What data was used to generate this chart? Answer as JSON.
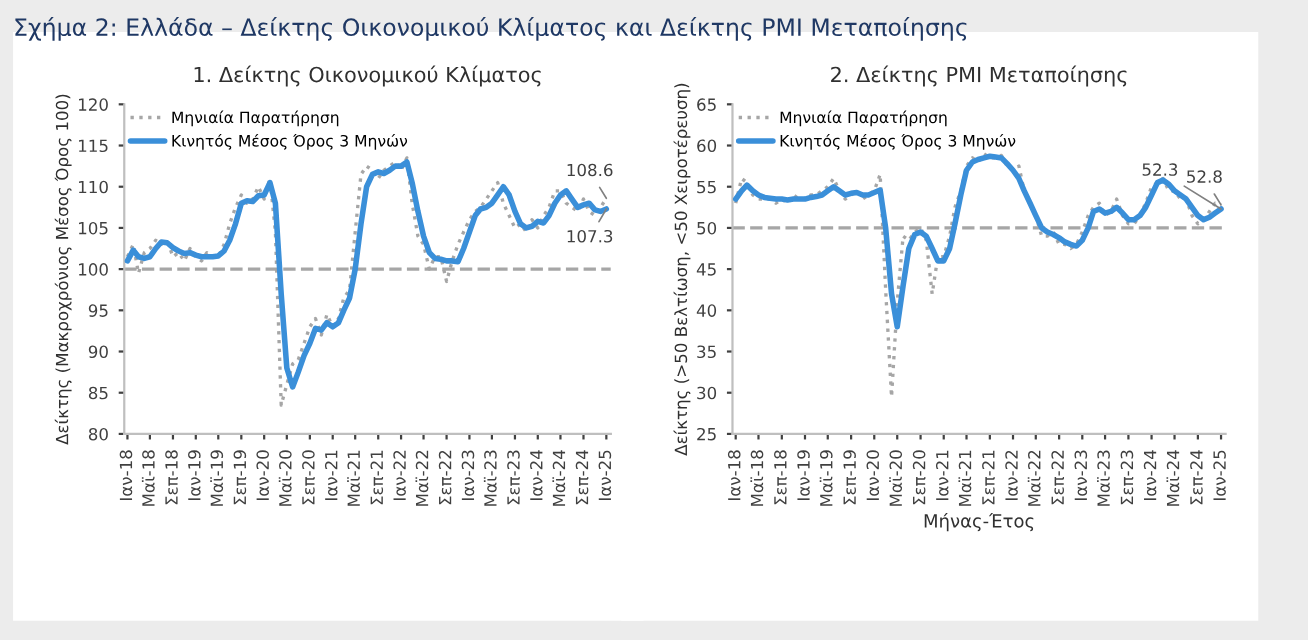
{
  "chart_data": [
    {
      "type": "line",
      "title": "1. Δείκτης Οικονομικού Κλίματος",
      "ylabel": "Δείκτης (Μακροχρόνιος Μέσος Όρος 100)",
      "annotations": [
        "Σχήμα 2: Ελλάδα – Δείκτης Οικονομικού Κλίματος και Δείκτης PMI Μεταποίησης",
        {
          "text": "108.6",
          "x": "2025-01",
          "y": 108.6
        },
        {
          "text": "107.3",
          "x": "2025-01",
          "y": 107.3
        }
      ],
      "x": [
        "2018-01",
        "2018-02",
        "2018-03",
        "2018-04",
        "2018-05",
        "2018-06",
        "2018-07",
        "2018-08",
        "2018-09",
        "2018-10",
        "2018-11",
        "2018-12",
        "2019-01",
        "2019-02",
        "2019-03",
        "2019-04",
        "2019-05",
        "2019-06",
        "2019-07",
        "2019-08",
        "2019-09",
        "2019-10",
        "2019-11",
        "2019-12",
        "2020-01",
        "2020-02",
        "2020-03",
        "2020-04",
        "2020-05",
        "2020-06",
        "2020-07",
        "2020-08",
        "2020-09",
        "2020-10",
        "2020-11",
        "2020-12",
        "2021-01",
        "2021-02",
        "2021-03",
        "2021-04",
        "2021-05",
        "2021-06",
        "2021-07",
        "2021-08",
        "2021-09",
        "2021-10",
        "2021-11",
        "2021-12",
        "2022-01",
        "2022-02",
        "2022-03",
        "2022-04",
        "2022-05",
        "2022-06",
        "2022-07",
        "2022-08",
        "2022-09",
        "2022-10",
        "2022-11",
        "2022-12",
        "2023-01",
        "2023-02",
        "2023-03",
        "2023-04",
        "2023-05",
        "2023-06",
        "2023-07",
        "2023-08",
        "2023-09",
        "2023-10",
        "2023-11",
        "2023-12",
        "2024-01",
        "2024-02",
        "2024-03",
        "2024-04",
        "2024-05",
        "2024-06",
        "2024-07",
        "2024-08",
        "2024-09",
        "2024-10",
        "2024-11",
        "2024-12",
        "2025-01"
      ],
      "series": [
        {
          "name": "Μηνιαία Παρατήρηση",
          "color": "#a6a6a6",
          "line_style": "dotted",
          "values": [
            101.5,
            103.0,
            99.5,
            102.0,
            102.5,
            103.5,
            103.0,
            103.5,
            101.5,
            102.0,
            101.0,
            102.5,
            101.5,
            101.0,
            102.0,
            101.5,
            101.5,
            103.0,
            105.5,
            107.5,
            109.0,
            108.0,
            108.5,
            110.0,
            108.5,
            111.0,
            104.5,
            83.5,
            86.0,
            88.5,
            89.0,
            91.0,
            93.0,
            94.0,
            92.0,
            94.5,
            93.0,
            94.0,
            96.5,
            97.5,
            104.5,
            111.5,
            112.5,
            112.0,
            111.0,
            112.0,
            112.5,
            113.0,
            112.0,
            113.5,
            108.0,
            104.0,
            103.0,
            100.0,
            101.5,
            101.5,
            98.5,
            101.0,
            103.0,
            104.5,
            106.0,
            107.0,
            107.5,
            108.5,
            109.5,
            110.5,
            108.0,
            106.5,
            105.0,
            105.5,
            104.5,
            106.0,
            105.0,
            106.5,
            107.5,
            109.5,
            109.5,
            108.0,
            107.5,
            107.0,
            108.5,
            107.0,
            106.5,
            107.5,
            108.6
          ]
        },
        {
          "name": "Κινητός Μέσος Όρος 3 Μηνών",
          "color": "#3a8fd9",
          "line_style": "solid",
          "values": [
            101.0,
            102.3,
            101.5,
            101.3,
            101.5,
            102.5,
            103.3,
            103.2,
            102.6,
            102.2,
            101.9,
            102.0,
            101.7,
            101.5,
            101.5,
            101.5,
            101.6,
            102.2,
            103.5,
            105.5,
            108.0,
            108.3,
            108.2,
            108.9,
            109.0,
            110.5,
            108.0,
            97.0,
            88.0,
            85.7,
            87.5,
            89.5,
            91.0,
            92.8,
            92.6,
            93.5,
            93.0,
            93.5,
            95.0,
            96.5,
            100.0,
            105.5,
            110.0,
            111.5,
            111.8,
            111.6,
            112.0,
            112.5,
            112.5,
            113.0,
            110.5,
            107.0,
            104.0,
            102.0,
            101.3,
            101.2,
            101.0,
            101.0,
            100.9,
            102.5,
            104.5,
            106.5,
            107.3,
            107.5,
            108.0,
            109.0,
            110.0,
            109.0,
            107.0,
            105.5,
            105.0,
            105.2,
            105.8,
            105.6,
            106.5,
            108.0,
            109.0,
            109.5,
            108.5,
            107.5,
            107.8,
            108.0,
            107.2,
            107.0,
            107.3
          ]
        }
      ],
      "ylim": [
        80,
        120
      ],
      "yticks": [
        80,
        85,
        90,
        95,
        100,
        105,
        110,
        115,
        120
      ],
      "xlim": [
        "2017-12-15",
        "2025-01-25"
      ],
      "xticks": [
        {
          "value": "2018-01",
          "label": "Ιαν-18"
        },
        {
          "value": "2018-05",
          "label": "Μαϊ-18"
        },
        {
          "value": "2018-09",
          "label": "Σεπ-18"
        },
        {
          "value": "2019-01",
          "label": "Ιαν-19"
        },
        {
          "value": "2019-05",
          "label": "Μαϊ-19"
        },
        {
          "value": "2019-09",
          "label": "Σεπ-19"
        },
        {
          "value": "2020-01",
          "label": "Ιαν-20"
        },
        {
          "value": "2020-05",
          "label": "Μαϊ-20"
        },
        {
          "value": "2020-09",
          "label": "Σεπ-20"
        },
        {
          "value": "2021-01",
          "label": "Ιαν-21"
        },
        {
          "value": "2021-05",
          "label": "Μαϊ-21"
        },
        {
          "value": "2021-09",
          "label": "Σεπ-21"
        },
        {
          "value": "2022-01",
          "label": "Ιαν-22"
        },
        {
          "value": "2022-05",
          "label": "Μαϊ-22"
        },
        {
          "value": "2022-09",
          "label": "Σεπ-22"
        },
        {
          "value": "2023-01",
          "label": "Ιαν-23"
        },
        {
          "value": "2023-05",
          "label": "Μαϊ-23"
        },
        {
          "value": "2023-09",
          "label": "Σεπ-23"
        },
        {
          "value": "2024-01",
          "label": "Ιαν-24"
        },
        {
          "value": "2024-05",
          "label": "Μαϊ-24"
        },
        {
          "value": "2024-09",
          "label": "Σεπ-24"
        },
        {
          "value": "2025-01",
          "label": "Ιαν-25"
        }
      ],
      "ref_lines": [
        {
          "axis": "y",
          "value": 100,
          "color": "#a6a6a6",
          "line_style": "dashed"
        }
      ],
      "legend": "top left",
      "grid": false
    },
    {
      "type": "line",
      "title": "2. Δείκτης PMI Μεταποίησης",
      "ylabel": "Δείκτης (>50 Βελτίωση, <50 Χειροτέρευση)",
      "xlabel": "Μήνας-Έτος",
      "annotations": [
        {
          "text": "52.8",
          "x": "2025-01",
          "y": 52.8
        },
        {
          "text": "52.3",
          "x": "2025-01",
          "y": 52.3
        }
      ],
      "x": [
        "2018-01",
        "2018-02",
        "2018-03",
        "2018-04",
        "2018-05",
        "2018-06",
        "2018-07",
        "2018-08",
        "2018-09",
        "2018-10",
        "2018-11",
        "2018-12",
        "2019-01",
        "2019-02",
        "2019-03",
        "2019-04",
        "2019-05",
        "2019-06",
        "2019-07",
        "2019-08",
        "2019-09",
        "2019-10",
        "2019-11",
        "2019-12",
        "2020-01",
        "2020-02",
        "2020-03",
        "2020-04",
        "2020-05",
        "2020-06",
        "2020-07",
        "2020-08",
        "2020-09",
        "2020-10",
        "2020-11",
        "2020-12",
        "2021-01",
        "2021-02",
        "2021-03",
        "2021-04",
        "2021-05",
        "2021-06",
        "2021-07",
        "2021-08",
        "2021-09",
        "2021-10",
        "2021-11",
        "2021-12",
        "2022-01",
        "2022-02",
        "2022-03",
        "2022-04",
        "2022-05",
        "2022-06",
        "2022-07",
        "2022-08",
        "2022-09",
        "2022-10",
        "2022-11",
        "2022-12",
        "2023-01",
        "2023-02",
        "2023-03",
        "2023-04",
        "2023-05",
        "2023-06",
        "2023-07",
        "2023-08",
        "2023-09",
        "2023-10",
        "2023-11",
        "2023-12",
        "2024-01",
        "2024-02",
        "2024-03",
        "2024-04",
        "2024-05",
        "2024-06",
        "2024-07",
        "2024-08",
        "2024-09",
        "2024-10",
        "2024-11",
        "2024-12",
        "2025-01"
      ],
      "series": [
        {
          "name": "Μηνιαία Παρατήρηση",
          "color": "#a6a6a6",
          "line_style": "dotted",
          "values": [
            53.0,
            56.0,
            55.5,
            54.0,
            53.5,
            53.5,
            53.5,
            53.0,
            53.5,
            53.0,
            54.0,
            53.5,
            53.5,
            54.0,
            54.0,
            54.5,
            55.0,
            56.0,
            54.5,
            53.5,
            54.0,
            54.5,
            53.5,
            54.0,
            54.5,
            56.5,
            42.5,
            29.5,
            41.0,
            49.0,
            48.5,
            49.5,
            50.0,
            48.5,
            42.0,
            46.5,
            46.5,
            49.0,
            52.5,
            54.5,
            57.5,
            58.5,
            58.0,
            59.0,
            58.5,
            58.5,
            58.8,
            57.5,
            57.0,
            57.5,
            54.5,
            53.0,
            51.5,
            49.0,
            49.0,
            49.5,
            48.0,
            48.0,
            47.5,
            48.0,
            49.5,
            51.5,
            52.5,
            53.0,
            51.5,
            52.0,
            53.5,
            51.5,
            50.5,
            50.5,
            51.5,
            53.0,
            55.0,
            55.5,
            56.0,
            54.5,
            54.5,
            53.5,
            53.5,
            51.5,
            50.5,
            51.0,
            52.0,
            53.0,
            52.8
          ]
        },
        {
          "name": "Κινητός Μέσος Όρος 3 Μηνών",
          "color": "#3a8fd9",
          "line_style": "solid",
          "values": [
            53.5,
            54.5,
            55.2,
            54.5,
            54.0,
            53.7,
            53.6,
            53.5,
            53.5,
            53.4,
            53.5,
            53.5,
            53.5,
            53.7,
            53.8,
            54.0,
            54.5,
            55.0,
            54.5,
            54.0,
            54.2,
            54.3,
            54.0,
            54.0,
            54.3,
            54.6,
            50.0,
            42.0,
            38.0,
            43.0,
            47.5,
            49.2,
            49.5,
            49.0,
            47.5,
            46.0,
            46.0,
            47.5,
            50.5,
            54.0,
            57.0,
            58.0,
            58.3,
            58.5,
            58.7,
            58.6,
            58.5,
            57.8,
            57.0,
            56.0,
            54.5,
            53.0,
            51.5,
            50.0,
            49.5,
            49.2,
            48.8,
            48.3,
            48.0,
            47.8,
            48.5,
            50.0,
            52.0,
            52.3,
            51.8,
            52.0,
            52.5,
            51.8,
            51.0,
            51.0,
            51.5,
            52.5,
            54.0,
            55.5,
            55.8,
            55.3,
            54.5,
            54.0,
            53.5,
            52.5,
            51.5,
            51.0,
            51.3,
            51.8,
            52.3
          ]
        }
      ],
      "ylim": [
        25,
        65
      ],
      "yticks": [
        25,
        30,
        35,
        40,
        45,
        50,
        55,
        60,
        65
      ],
      "xlim": [
        "2017-12-15",
        "2025-01-25"
      ],
      "xticks": [
        {
          "value": "2018-01",
          "label": "Ιαν-18"
        },
        {
          "value": "2018-05",
          "label": "Μαϊ-18"
        },
        {
          "value": "2018-09",
          "label": "Σεπ-18"
        },
        {
          "value": "2019-01",
          "label": "Ιαν-19"
        },
        {
          "value": "2019-05",
          "label": "Μαϊ-19"
        },
        {
          "value": "2019-09",
          "label": "Σεπ-19"
        },
        {
          "value": "2020-01",
          "label": "Ιαν-20"
        },
        {
          "value": "2020-05",
          "label": "Μαϊ-20"
        },
        {
          "value": "2020-09",
          "label": "Σεπ-20"
        },
        {
          "value": "2021-01",
          "label": "Ιαν-21"
        },
        {
          "value": "2021-05",
          "label": "Μαϊ-21"
        },
        {
          "value": "2021-09",
          "label": "Σεπ-21"
        },
        {
          "value": "2022-01",
          "label": "Ιαν-22"
        },
        {
          "value": "2022-05",
          "label": "Μαϊ-22"
        },
        {
          "value": "2022-09",
          "label": "Σεπ-22"
        },
        {
          "value": "2023-01",
          "label": "Ιαν-23"
        },
        {
          "value": "2023-05",
          "label": "Μαϊ-23"
        },
        {
          "value": "2023-09",
          "label": "Σεπ-23"
        },
        {
          "value": "2024-01",
          "label": "Ιαν-24"
        },
        {
          "value": "2024-05",
          "label": "Μαϊ-24"
        },
        {
          "value": "2024-09",
          "label": "Σεπ-24"
        },
        {
          "value": "2025-01",
          "label": "Ιαν-25"
        }
      ],
      "ref_lines": [
        {
          "axis": "y",
          "value": 50,
          "color": "#a6a6a6",
          "line_style": "dashed"
        }
      ],
      "legend": "top left",
      "grid": false
    }
  ]
}
